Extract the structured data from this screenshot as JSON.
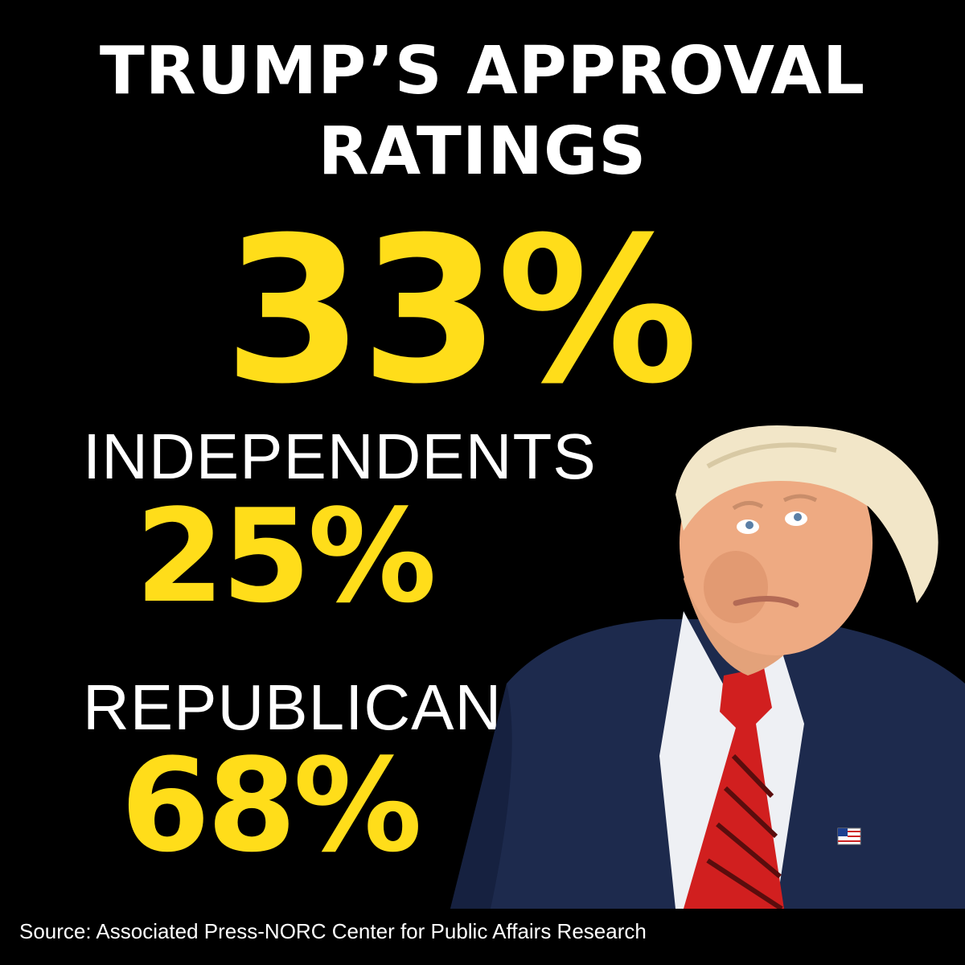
{
  "title": {
    "line1": "TRUMP’S APPROVAL",
    "line2": "RATINGS"
  },
  "overall": {
    "value": "33%"
  },
  "groups": [
    {
      "label": "INDEPENDENTS",
      "value": "25%"
    },
    {
      "label": "REPUBLICANS",
      "value": "68%"
    }
  ],
  "source": "Source: Associated Press-NORC Center for Public Affairs Research",
  "colors": {
    "background": "#000000",
    "accent": "#FFDD1A",
    "text": "#FFFFFF"
  }
}
